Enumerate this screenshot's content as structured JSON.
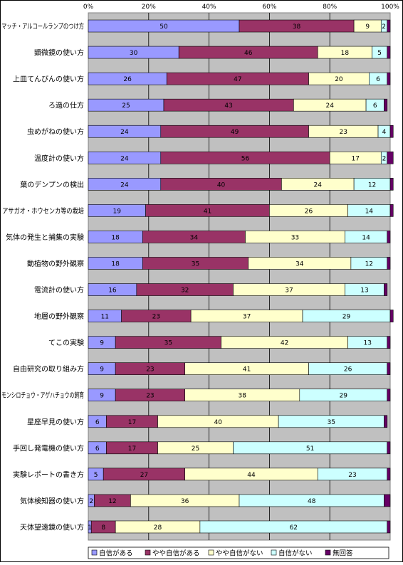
{
  "chart_data": {
    "type": "bar",
    "stacked": true,
    "orientation": "horizontal",
    "categories": [
      "マッチ・アルコールランプのつけ方",
      "顕微鏡の使い方",
      "上皿てんびんの使い方",
      "ろ過の仕方",
      "虫めがねの使い方",
      "温度計の使い方",
      "葉のデンプンの検出",
      "アサガオ・ホウセンカ等の栽培",
      "気体の発生と捕集の実験",
      "動植物の野外観察",
      "電流計の使い方",
      "地層の野外観察",
      "てこの実験",
      "自由研究の取り組み方",
      "モンシロチョウ・アゲハチョウの飼育",
      "星座早見の使い方",
      "手回し発電機の使い方",
      "実験レポートの書き方",
      "気体検知器の使い方",
      "天体望遠鏡の使い方"
    ],
    "series": [
      {
        "name": "自信がある",
        "color": "#9999ff",
        "values": [
          50,
          30,
          26,
          25,
          24,
          24,
          24,
          19,
          18,
          18,
          16,
          11,
          9,
          9,
          9,
          6,
          6,
          5,
          2,
          1
        ]
      },
      {
        "name": "やや自信がある",
        "color": "#993366",
        "values": [
          38,
          46,
          47,
          43,
          49,
          56,
          40,
          41,
          34,
          35,
          32,
          23,
          35,
          23,
          23,
          17,
          17,
          27,
          12,
          8
        ]
      },
      {
        "name": "やや自信がない",
        "color": "#ffffcc",
        "values": [
          9,
          18,
          20,
          24,
          23,
          17,
          24,
          26,
          33,
          34,
          37,
          37,
          42,
          41,
          38,
          40,
          25,
          44,
          36,
          28
        ]
      },
      {
        "name": "自信がない",
        "color": "#ccffff",
        "values": [
          2,
          5,
          6,
          6,
          4,
          2,
          12,
          14,
          14,
          12,
          13,
          29,
          13,
          26,
          29,
          35,
          51,
          23,
          48,
          62
        ]
      },
      {
        "name": "無回答",
        "color": "#660066",
        "values": [
          1,
          1,
          1,
          1,
          1,
          2,
          1,
          1,
          1,
          1,
          1,
          1,
          1,
          1,
          1,
          1,
          1,
          1,
          2,
          1
        ]
      }
    ],
    "hidden_labels": [
      [
        4,
        0
      ],
      [
        4,
        1
      ],
      [
        4,
        2
      ],
      [
        4,
        3
      ],
      [
        4,
        4
      ],
      [
        4,
        5
      ],
      [
        4,
        6
      ],
      [
        4,
        7
      ],
      [
        4,
        8
      ],
      [
        4,
        9
      ],
      [
        4,
        10
      ],
      [
        4,
        11
      ],
      [
        4,
        12
      ],
      [
        4,
        13
      ],
      [
        4,
        14
      ],
      [
        4,
        15
      ],
      [
        4,
        16
      ],
      [
        4,
        17
      ],
      [
        4,
        18
      ],
      [
        4,
        19
      ],
      [
        3,
        0
      ]
    ],
    "partial_labels": {
      "3,0": "2"
    },
    "xlim": [
      0,
      100
    ],
    "x_ticks": [
      "0%",
      "20%",
      "40%",
      "60%",
      "80%",
      "100%"
    ],
    "plot_background": "#c0c0c0",
    "grid": true,
    "legend_position": "bottom"
  }
}
